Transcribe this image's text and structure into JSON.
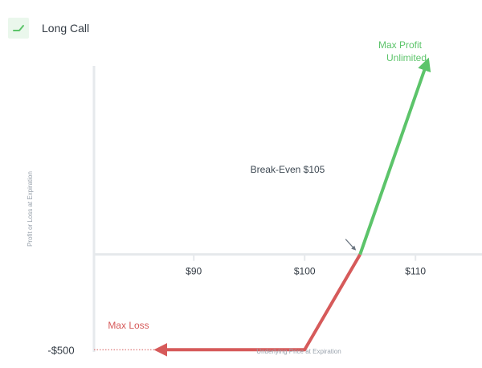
{
  "legend": {
    "label": "Long Call",
    "icon": "long-call-payoff-icon"
  },
  "colors": {
    "profit": "#5cc46a",
    "loss": "#d65a5a",
    "axis": "#e6e9ec",
    "tick_text": "#333b44",
    "axis_label": "#9aa3ad",
    "annotation": "#3d4852",
    "legend_bg": "#eaf7ec"
  },
  "chart_data": {
    "type": "line",
    "title": "",
    "xlabel": "Underlying Price at Expiration",
    "ylabel": "Profit or Loss at Expiration",
    "xlim": [
      81,
      116
    ],
    "ylim": [
      -520,
      1040
    ],
    "x_ticks": [
      {
        "value": 90,
        "label": "$90"
      },
      {
        "value": 100,
        "label": "$100"
      },
      {
        "value": 110,
        "label": "$110"
      }
    ],
    "y_ticks": [
      {
        "value": -500,
        "label": "-$500"
      }
    ],
    "series": [
      {
        "segment": "loss",
        "points": [
          [
            87,
            -500
          ],
          [
            100,
            -500
          ],
          [
            105,
            0
          ]
        ]
      },
      {
        "segment": "profit",
        "points": [
          [
            105,
            0
          ],
          [
            111,
            1000
          ]
        ]
      }
    ],
    "annotations": {
      "breakeven": {
        "x": 105,
        "y": 0,
        "text": "Break-Even $105"
      },
      "max_loss": {
        "text": "Max Loss"
      },
      "max_profit": {
        "lines": [
          "Max Profit",
          "Unlimited"
        ]
      }
    }
  }
}
